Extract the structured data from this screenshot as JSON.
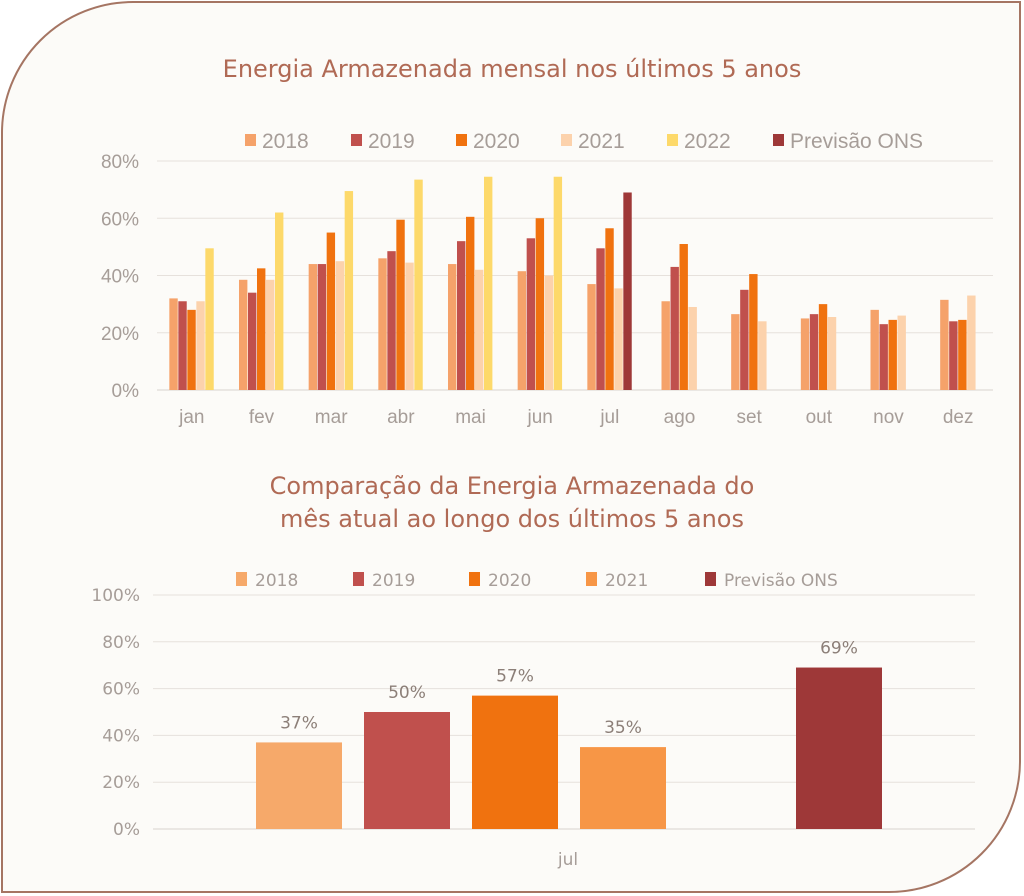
{
  "colors": {
    "border": "#a57563",
    "title": "#b06a55",
    "text": "#a69d98",
    "grid": "#e6e1dc",
    "axis": "#d9d3ce"
  },
  "chart_data": [
    {
      "type": "bar",
      "title": "Energia Armazenada mensal nos últimos 5 anos",
      "categories": [
        "jan",
        "fev",
        "mar",
        "abr",
        "mai",
        "jun",
        "jul",
        "ago",
        "set",
        "out",
        "nov",
        "dez"
      ],
      "y_ticks": [
        "0%",
        "20%",
        "40%",
        "60%",
        "80%"
      ],
      "ylim": [
        0,
        80
      ],
      "grid": true,
      "legend_position": "top",
      "series": [
        {
          "name": "2018",
          "color": "#f5a26a",
          "values": [
            32,
            38.5,
            44,
            46,
            44,
            41.5,
            37,
            31,
            26.5,
            25,
            28,
            31.5
          ]
        },
        {
          "name": "2019",
          "color": "#c0504d",
          "values": [
            31,
            34,
            44,
            48.5,
            52,
            53,
            49.5,
            43,
            35,
            26.5,
            23,
            24
          ]
        },
        {
          "name": "2020",
          "color": "#f0720f",
          "values": [
            28,
            42.5,
            55,
            59.5,
            60.5,
            60,
            56.5,
            51,
            40.5,
            30,
            24.5,
            24.5
          ]
        },
        {
          "name": "2021",
          "color": "#fcd2ac",
          "values": [
            31,
            38.5,
            45,
            44.5,
            42,
            40,
            35.5,
            29,
            24,
            25.5,
            26,
            33
          ]
        },
        {
          "name": "2022",
          "color": "#fdd96a",
          "values": [
            49.5,
            62,
            69.5,
            73.5,
            74.5,
            74.5,
            null,
            null,
            null,
            null,
            null,
            null
          ]
        },
        {
          "name": "Previsão ONS",
          "color": "#9e3838",
          "values": [
            null,
            null,
            null,
            null,
            null,
            null,
            69,
            null,
            null,
            null,
            null,
            null
          ]
        }
      ]
    },
    {
      "type": "bar",
      "title": [
        "Comparação da Energia Armazenada do",
        "mês atual ao longo dos últimos 5 anos"
      ],
      "categories": [
        "jul"
      ],
      "y_ticks": [
        "0%",
        "20%",
        "40%",
        "60%",
        "80%",
        "100%"
      ],
      "ylim": [
        0,
        100
      ],
      "grid": true,
      "legend_position": "top",
      "series": [
        {
          "name": "2018",
          "color": "#f6a96a",
          "value": 37,
          "label": "37%"
        },
        {
          "name": "2019",
          "color": "#c0504d",
          "value": 50,
          "label": "50%"
        },
        {
          "name": "2020",
          "color": "#f0720f",
          "value": 57,
          "label": "57%"
        },
        {
          "name": "2021",
          "color": "#f79646",
          "value": 35,
          "label": "35%"
        },
        {
          "name": "Previsão ONS",
          "color": "#9e3838",
          "value": 69,
          "label": "69%"
        }
      ]
    }
  ]
}
